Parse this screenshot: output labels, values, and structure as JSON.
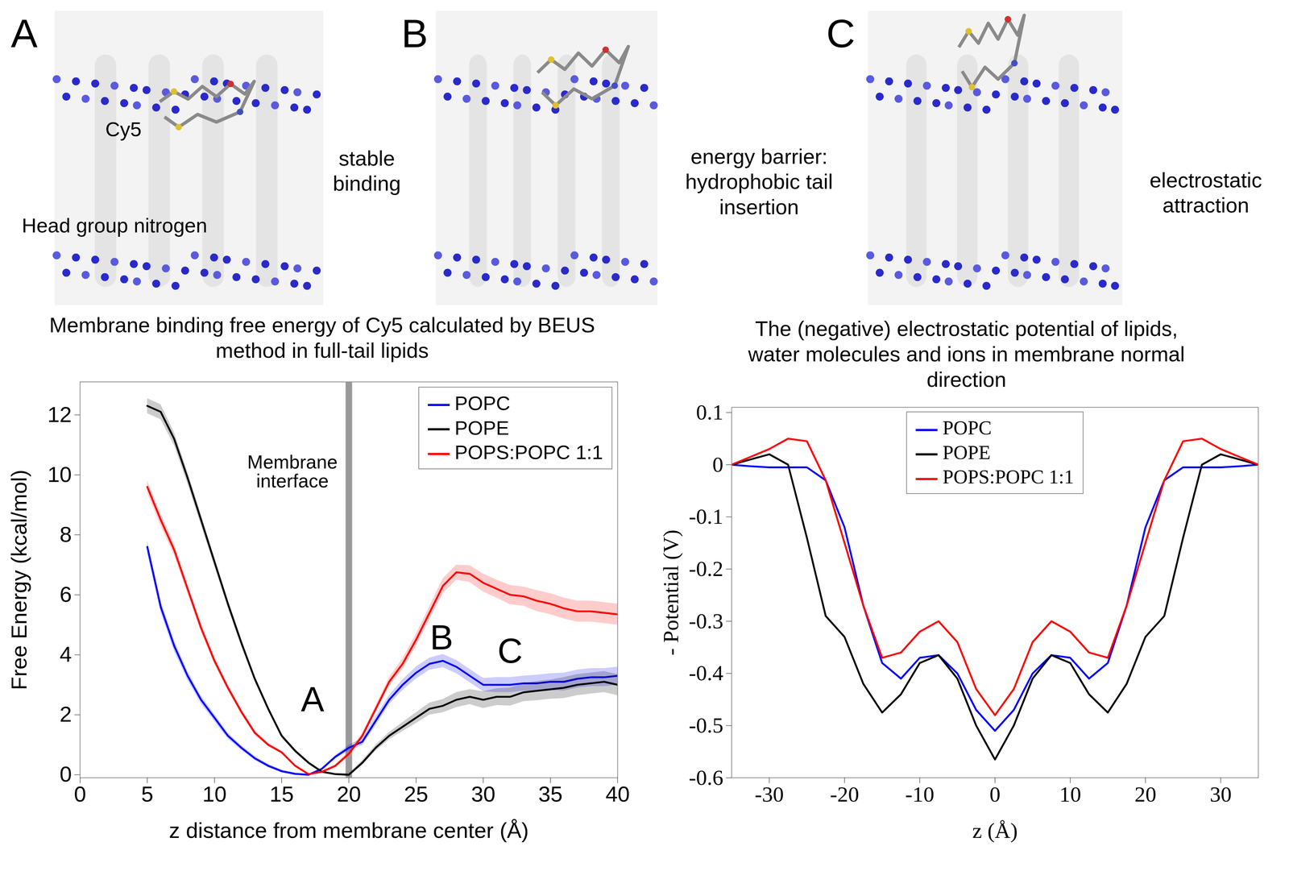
{
  "figure_panels": [
    {
      "letter": "A",
      "caption": "stable binding",
      "labels": [
        "Cy5",
        "Head group nitrogen"
      ]
    },
    {
      "letter": "B",
      "caption": "energy barrier: hydrophobic tail insertion",
      "labels": []
    },
    {
      "letter": "C",
      "caption": "electrostatic attraction",
      "labels": []
    }
  ],
  "chart_data": [
    {
      "type": "line",
      "title": "Membrane binding free energy of Cy5 calculated by BEUS method in full-tail lipids",
      "xlabel": "z distance from membrane center (Å)",
      "ylabel": "Free Energy (kcal/mol)",
      "xlim": [
        0,
        40
      ],
      "ylim": [
        -0.1,
        13.1
      ],
      "xticks": [
        0,
        5,
        10,
        15,
        20,
        25,
        30,
        35,
        40
      ],
      "yticks": [
        0,
        2,
        4,
        6,
        8,
        10,
        12
      ],
      "legend": "top-right",
      "vertical_band": {
        "x": 20
      },
      "annotations": [
        {
          "text": "Membrane interface",
          "x": 15.8,
          "y": 10.1
        },
        {
          "text": "A",
          "x": 17.3,
          "y": 2.5
        },
        {
          "text": "B",
          "x": 26.9,
          "y": 4.55
        },
        {
          "text": "C",
          "x": 32,
          "y": 4.1
        }
      ],
      "x": [
        5,
        6,
        7,
        8,
        9,
        10,
        11,
        12,
        13,
        14,
        15,
        16,
        17,
        18,
        19,
        20,
        21,
        22,
        23,
        24,
        25,
        26,
        27,
        28,
        29,
        30,
        31,
        32,
        33,
        34,
        35,
        36,
        37,
        38,
        39,
        40
      ],
      "series": [
        {
          "name": "POPC",
          "color": "#0000ff",
          "values": [
            7.6,
            5.6,
            4.3,
            3.3,
            2.5,
            1.9,
            1.3,
            0.9,
            0.55,
            0.3,
            0.12,
            0.03,
            0,
            0.2,
            0.6,
            0.9,
            1.1,
            1.8,
            2.5,
            3.0,
            3.4,
            3.7,
            3.8,
            3.6,
            3.3,
            3.0,
            3.0,
            3.0,
            3.05,
            3.05,
            3.1,
            3.1,
            3.2,
            3.25,
            3.25,
            3.3
          ],
          "error": [
            0.2,
            0.2,
            0.18,
            0.15,
            0.13,
            0.12,
            0.1,
            0.08,
            0.07,
            0.06,
            0.05,
            0.04,
            0.03,
            0.04,
            0.06,
            0.1,
            0.12,
            0.15,
            0.15,
            0.18,
            0.2,
            0.2,
            0.22,
            0.22,
            0.22,
            0.22,
            0.25,
            0.25,
            0.25,
            0.28,
            0.28,
            0.3,
            0.3,
            0.3,
            0.3,
            0.3
          ]
        },
        {
          "name": "POPE",
          "color": "#000000",
          "values": [
            12.3,
            12.1,
            11.2,
            9.9,
            8.5,
            7.1,
            5.7,
            4.4,
            3.2,
            2.2,
            1.3,
            0.8,
            0.4,
            0.1,
            0.02,
            0,
            0.4,
            0.9,
            1.3,
            1.6,
            1.9,
            2.2,
            2.3,
            2.5,
            2.6,
            2.5,
            2.6,
            2.6,
            2.75,
            2.8,
            2.85,
            2.9,
            3.0,
            3.05,
            3.1,
            3.0
          ],
          "error": [
            0.25,
            0.25,
            0.22,
            0.2,
            0.18,
            0.15,
            0.13,
            0.12,
            0.1,
            0.08,
            0.07,
            0.06,
            0.05,
            0.04,
            0.03,
            0.05,
            0.08,
            0.1,
            0.12,
            0.15,
            0.18,
            0.2,
            0.22,
            0.25,
            0.25,
            0.28,
            0.28,
            0.3,
            0.3,
            0.32,
            0.32,
            0.35,
            0.35,
            0.35,
            0.35,
            0.35
          ]
        },
        {
          "name": "POPS:POPC 1:1",
          "color": "#ff0000",
          "values": [
            9.6,
            8.5,
            7.5,
            6.2,
            4.9,
            3.8,
            2.9,
            2.1,
            1.4,
            1.0,
            0.75,
            0.3,
            0.02,
            0.1,
            0.3,
            0.7,
            1.3,
            2.2,
            3.1,
            3.7,
            4.5,
            5.4,
            6.3,
            6.75,
            6.7,
            6.4,
            6.2,
            6.0,
            5.95,
            5.8,
            5.7,
            5.55,
            5.45,
            5.45,
            5.4,
            5.35
          ],
          "error": [
            0.2,
            0.2,
            0.18,
            0.16,
            0.14,
            0.12,
            0.1,
            0.09,
            0.08,
            0.06,
            0.05,
            0.04,
            0.03,
            0.04,
            0.06,
            0.08,
            0.1,
            0.12,
            0.15,
            0.18,
            0.2,
            0.22,
            0.25,
            0.25,
            0.28,
            0.3,
            0.3,
            0.32,
            0.32,
            0.35,
            0.35,
            0.35,
            0.35,
            0.35,
            0.35,
            0.35
          ]
        }
      ]
    },
    {
      "type": "line",
      "title": "The (negative) electrostatic potential of lipids, water molecules and ions in membrane normal direction",
      "xlabel": "z (Å)",
      "ylabel": "- Potential (V)",
      "xlim": [
        -35,
        35
      ],
      "ylim": [
        -0.6,
        0.11
      ],
      "xticks": [
        -30,
        -20,
        -10,
        0,
        10,
        20,
        30
      ],
      "yticks": [
        -0.6,
        -0.5,
        -0.4,
        -0.3,
        -0.2,
        -0.1,
        0,
        0.1
      ],
      "legend": "top",
      "x": [
        -35,
        -32.5,
        -30,
        -27.5,
        -25,
        -22.5,
        -20,
        -17.5,
        -15,
        -12.5,
        -10,
        -7.5,
        -5,
        -2.5,
        0,
        2.5,
        5,
        7.5,
        10,
        12.5,
        15,
        17.5,
        20,
        22.5,
        25,
        27.5,
        30,
        32.5,
        35
      ],
      "series": [
        {
          "name": "POPC",
          "color": "#0000ff",
          "values": [
            0,
            -0.003,
            -0.005,
            -0.005,
            -0.005,
            -0.03,
            -0.12,
            -0.27,
            -0.38,
            -0.41,
            -0.37,
            -0.365,
            -0.4,
            -0.47,
            -0.51,
            -0.47,
            -0.4,
            -0.365,
            -0.37,
            -0.41,
            -0.38,
            -0.27,
            -0.12,
            -0.03,
            -0.005,
            -0.005,
            -0.005,
            -0.003,
            0
          ]
        },
        {
          "name": "POPE",
          "color": "#000000",
          "values": [
            0,
            0.01,
            0.02,
            0,
            -0.14,
            -0.29,
            -0.33,
            -0.42,
            -0.475,
            -0.44,
            -0.38,
            -0.365,
            -0.41,
            -0.5,
            -0.565,
            -0.5,
            -0.41,
            -0.365,
            -0.38,
            -0.44,
            -0.475,
            -0.42,
            -0.33,
            -0.29,
            -0.14,
            0,
            0.02,
            0.01,
            0
          ]
        },
        {
          "name": "POPS:POPC 1:1",
          "color": "#ff0000",
          "values": [
            0,
            0.015,
            0.03,
            0.05,
            0.045,
            -0.03,
            -0.15,
            -0.27,
            -0.37,
            -0.36,
            -0.32,
            -0.3,
            -0.34,
            -0.43,
            -0.48,
            -0.43,
            -0.34,
            -0.3,
            -0.32,
            -0.36,
            -0.37,
            -0.27,
            -0.15,
            -0.03,
            0.045,
            0.05,
            0.03,
            0.015,
            0
          ]
        }
      ]
    }
  ]
}
